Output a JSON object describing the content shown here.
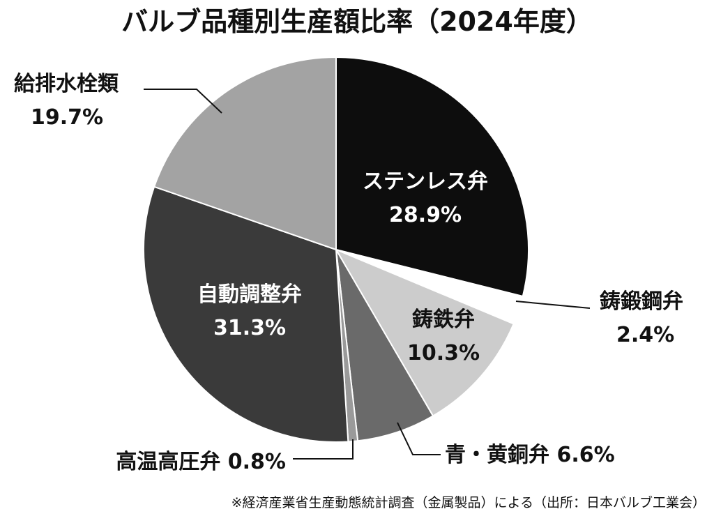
{
  "chart_data": {
    "type": "pie",
    "title": "バルブ品種別生産額比率（2024年度）",
    "slices": [
      {
        "name": "ステンレス弁",
        "value": 28.9,
        "label": "28.9%",
        "color": "#0d0d0d",
        "label_color": "#ffffff"
      },
      {
        "name": "鋳鍛鋼弁",
        "value": 2.4,
        "label": "2.4%",
        "color": "#ffffff",
        "label_color": "#111111"
      },
      {
        "name": "鋳鉄弁",
        "value": 10.3,
        "label": "10.3%",
        "color": "#cccccc",
        "label_color": "#111111"
      },
      {
        "name": "青・黄銅弁",
        "value": 6.6,
        "label": "6.6%",
        "color": "#6a6a6a",
        "label_color": "#111111"
      },
      {
        "name": "高温高圧弁",
        "value": 0.8,
        "label": "0.8%",
        "color": "#9a9a9a",
        "label_color": "#111111"
      },
      {
        "name": "自動調整弁",
        "value": 31.3,
        "label": "31.3%",
        "color": "#3a3a3a",
        "label_color": "#ffffff"
      },
      {
        "name": "給排水栓類",
        "value": 19.7,
        "label": "19.7%",
        "color": "#a3a3a3",
        "label_color": "#111111"
      }
    ],
    "start": "12 o'clock",
    "direction": "clockwise",
    "legend": "none"
  },
  "source_note": "※経済産業省生産動態統計調査（金属製品）による（出所：日本バルブ工業会）"
}
